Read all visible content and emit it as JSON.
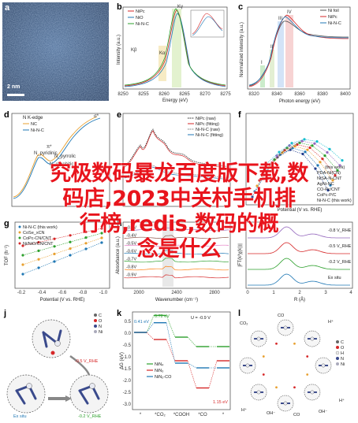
{
  "overlay": {
    "line1": "究极数码暴龙百度版下载,数",
    "line2": "码店,2023中关村手机排",
    "line3": "行榜,redis,数码的概",
    "line4": "念是什么"
  },
  "panel_a": {
    "label": "a",
    "scalebar": "2 nm"
  },
  "panel_b": {
    "label": "b",
    "legend": [
      "NiPc",
      "NiO",
      "Ni-N-C"
    ],
    "xlabel": "Energy (eV)",
    "ylabel": "Intensity (a.u.)",
    "xticks": [
      "8250",
      "8255",
      "8260",
      "8265",
      "8270",
      "8275"
    ],
    "annotations": [
      "Kβ",
      "Kα",
      "Kγ"
    ],
    "inset_xlabel": "Energy (eV)",
    "colors": {
      "NiPc": "#d62728",
      "NiO": "#1f77b4",
      "Ni-N-C": "#2ca02c"
    }
  },
  "panel_c": {
    "label": "c",
    "legend": [
      "Ni foil",
      "NiPc",
      "Ni-N-C"
    ],
    "xlabel": "Photon energy (eV)",
    "ylabel": "Normalized intensity (a.u.)",
    "xticks": [
      "8320",
      "8340",
      "8360",
      "8380",
      "8400"
    ],
    "annotations": [
      "I",
      "II",
      "III",
      "IV"
    ]
  },
  "panel_d": {
    "label": "d",
    "title": "N K-edge",
    "legend": [
      "NC",
      "Ni-N-C"
    ],
    "annotations": [
      "σ*",
      "π*",
      "N_pyridinic",
      "N_pyrrolic",
      "N_graphitic"
    ]
  },
  "panel_e": {
    "label": "e",
    "legend": [
      "NiPc (raw)",
      "NiPc (fitting)",
      "Ni-N-C (raw)",
      "Ni-N-C (fitting)"
    ]
  },
  "panel_f": {
    "label": "f",
    "xlabel": "Potential (V vs. RHE)",
    "legend": [
      "(this work)",
      "PDA-Ni(CN)",
      "NiSA-N-CNT",
      "AgNi-NC",
      "CO-Pc/CNT",
      "CoPc-P/C",
      "Ni-N-C (this work)"
    ]
  },
  "panel_g": {
    "label": "g",
    "xlabel": "Potential (V vs. RHE)",
    "ylabel": "TOF (h⁻¹)",
    "legend": [
      "Ni-N-C (this work)",
      "CoSe_xCN",
      "CoPc-CN/CNT",
      "Ni/NiO/CN/CNT"
    ],
    "xticks": [
      "-0.2",
      "-0.4",
      "-0.6",
      "-0.8",
      "-1.0"
    ]
  },
  "panel_h": {
    "label": "h",
    "xlabel": "Wavenumber (cm⁻¹)",
    "ylabel": "Absorbance (a.u.)",
    "traces": [
      "-0.3V",
      "-0.4V",
      "-0.5V",
      "-0.6V",
      "-0.7V",
      "-0.8V",
      "-0.9V"
    ],
    "xticks": [
      "2000",
      "2400",
      "2800"
    ]
  },
  "panel_i": {
    "label": "i",
    "xlabel": "R (Å)",
    "ylabel": "|FT(k³χ(k))|",
    "traces": [
      "-0.8 V_RHE",
      "-0.5 V_RHE",
      "-0.2 V_RHE",
      "Ex situ"
    ],
    "xticks": [
      "0",
      "1",
      "2",
      "3",
      "4"
    ]
  },
  "panel_j": {
    "label": "j",
    "labels": [
      "-0.5 V_RHE",
      "Ex situ",
      "-0.2 V_RHE"
    ],
    "legend": [
      "C",
      "O",
      "N",
      "Ni"
    ]
  },
  "panel_k": {
    "label": "k",
    "xlabel": "",
    "ylabel": "ΔG (eV)",
    "xticks": [
      "*",
      "*CO₂",
      "*COOH",
      "*CO",
      "*"
    ],
    "annotations": [
      "0.41 eV",
      "0.72 eV",
      "U = -0.9 V",
      "1.15 eV"
    ],
    "legend": [
      "NiN₄",
      "NiN₃",
      "NiN₂-CO"
    ],
    "yticks": [
      "0.5",
      "0.0",
      "-0.5",
      "-1.0",
      "-1.5",
      "-2.0",
      "-2.5",
      "-3.0"
    ]
  },
  "panel_l": {
    "label": "l",
    "labels": [
      "CO₂",
      "CO",
      "H⁺",
      "H⁺",
      "OH⁻",
      "CO",
      "OH⁻",
      "H⁺"
    ],
    "legend": [
      "C",
      "O",
      "H",
      "N",
      "Ni"
    ]
  }
}
